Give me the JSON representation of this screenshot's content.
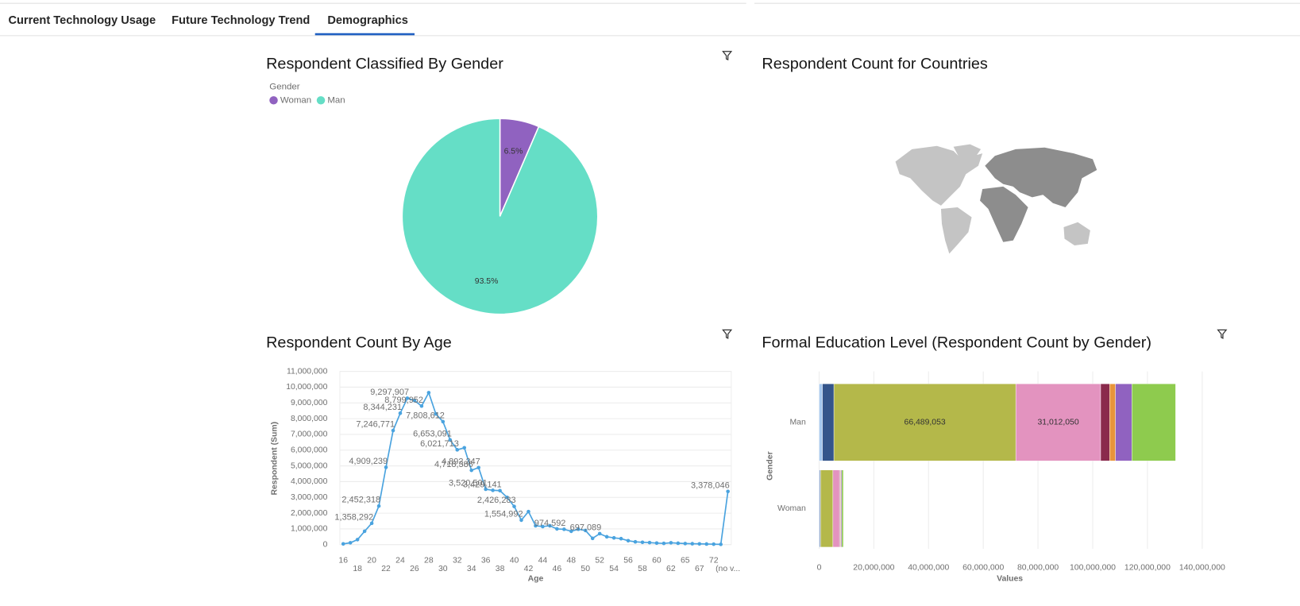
{
  "tabs": [
    "Current Technology Usage",
    "Future Technology Trend",
    "Demographics"
  ],
  "active_tab": 2,
  "chart_data": [
    {
      "type": "pie",
      "title": "Respondent Classified By Gender",
      "legend_title": "Gender",
      "categories": [
        "Woman",
        "Man"
      ],
      "values": [
        6.5,
        93.5
      ],
      "value_labels": [
        "6.5%",
        "93.5%"
      ],
      "colors": [
        "#9062c0",
        "#65dec6"
      ]
    },
    {
      "type": "map",
      "title": "Respondent Count for Countries"
    },
    {
      "type": "line",
      "title": "Respondent Count By Age",
      "x_label": "Age",
      "y_label": "Respondent (Sum)",
      "color": "#4aa3df",
      "categories": [
        "16",
        null,
        "18",
        null,
        "20",
        null,
        "22",
        null,
        "24",
        null,
        "26",
        null,
        "28",
        null,
        "30",
        null,
        "32",
        null,
        "34",
        null,
        "36",
        null,
        "38",
        null,
        "40",
        null,
        "42",
        null,
        "44",
        null,
        "46",
        null,
        "48",
        null,
        "50",
        null,
        "52",
        null,
        "54",
        null,
        "56",
        null,
        "58",
        null,
        "60",
        null,
        "62",
        null,
        "65",
        null,
        "67",
        null,
        "72",
        null,
        "(no v..."
      ],
      "values": [
        50000,
        120000,
        320000,
        850000,
        1358292,
        2452318,
        4909239,
        7246771,
        8344231,
        9297907,
        9150000,
        8799952,
        9650000,
        8300000,
        7808612,
        6653091,
        6021713,
        6150000,
        4718386,
        4892347,
        3520501,
        3450000,
        3429141,
        3000000,
        2426283,
        1554992,
        2100000,
        1200000,
        1150000,
        1200000,
        1000000,
        974592,
        850000,
        980000,
        900000,
        400000,
        697089,
        500000,
        430000,
        380000,
        250000,
        180000,
        150000,
        130000,
        100000,
        80000,
        120000,
        90000,
        70000,
        60000,
        50000,
        40000,
        30000,
        20000,
        3378046
      ],
      "value_labels": [
        null,
        null,
        null,
        null,
        "1,358,292",
        "2,452,318",
        "4,909,239",
        "7,246,771",
        "8,344,231",
        "9,297,907",
        null,
        "8,799,952",
        null,
        null,
        "7,808,612",
        "6,653,091",
        "6,021,713",
        null,
        "4,718,386",
        "4,892,347",
        "3,520,501",
        null,
        "3,429,141",
        null,
        "2,426,283",
        "1,554,992",
        null,
        null,
        null,
        null,
        null,
        "974,592",
        null,
        null,
        null,
        null,
        "697,089",
        null,
        null,
        null,
        null,
        null,
        null,
        null,
        null,
        null,
        null,
        null,
        null,
        null,
        null,
        null,
        null,
        null,
        "3,378,046"
      ],
      "ylim": [
        0,
        11000000
      ],
      "yticks": [
        0,
        {
          "value": 1000000,
          "label": "1,000,000"
        },
        {
          "value": 2000000,
          "label": "2,000,000"
        },
        {
          "value": 3000000,
          "label": "3,000,000"
        },
        {
          "value": 4000000,
          "label": "4,000,000"
        },
        {
          "value": 5000000,
          "label": "5,000,000"
        },
        {
          "value": 6000000,
          "label": "6,000,000"
        },
        {
          "value": 7000000,
          "label": "7,000,000"
        },
        {
          "value": 8000000,
          "label": "8,000,000"
        },
        {
          "value": 9000000,
          "label": "9,000,000"
        },
        {
          "value": 10000000,
          "label": "10,000,000"
        },
        {
          "value": 11000000,
          "label": "11,000,000"
        }
      ],
      "grid": true
    },
    {
      "type": "bar",
      "orientation": "horizontal",
      "stacked": true,
      "title": "Formal Education Level (Respondent Count by Gender)",
      "y_label": "Gender",
      "x_label": "Values",
      "categories": [
        "Man",
        "Woman"
      ],
      "series": [
        {
          "color": "#a6c8ef",
          "values": [
            1200000,
            250000
          ]
        },
        {
          "color": "#34558b",
          "values": [
            4200000,
            300000
          ]
        },
        {
          "color": "#b4b84a",
          "values": [
            66489053,
            4500000
          ],
          "value_labels": [
            "66,489,053",
            null
          ]
        },
        {
          "color": "#e393bf",
          "values": [
            31012050,
            2400000
          ],
          "value_labels": [
            "31,012,050",
            null
          ]
        },
        {
          "color": "#8a2a4c",
          "values": [
            3300000,
            250000
          ]
        },
        {
          "color": "#e8943a",
          "values": [
            2100000,
            200000
          ]
        },
        {
          "color": "#9062c0",
          "values": [
            6000000,
            350000
          ]
        },
        {
          "color": "#8ecb4e",
          "values": [
            16000000,
            600000
          ]
        }
      ],
      "xlim": [
        0,
        140000000
      ],
      "xticks": [
        0,
        {
          "value": 20000000,
          "label": "20,000,000"
        },
        {
          "value": 40000000,
          "label": "40,000,000"
        },
        {
          "value": 60000000,
          "label": "60,000,000"
        },
        {
          "value": 80000000,
          "label": "80,000,000"
        },
        {
          "value": 100000000,
          "label": "100,000,000"
        },
        {
          "value": 120000000,
          "label": "120,000,000"
        },
        {
          "value": 140000000,
          "label": "140,000,000"
        }
      ],
      "grid": true
    }
  ]
}
